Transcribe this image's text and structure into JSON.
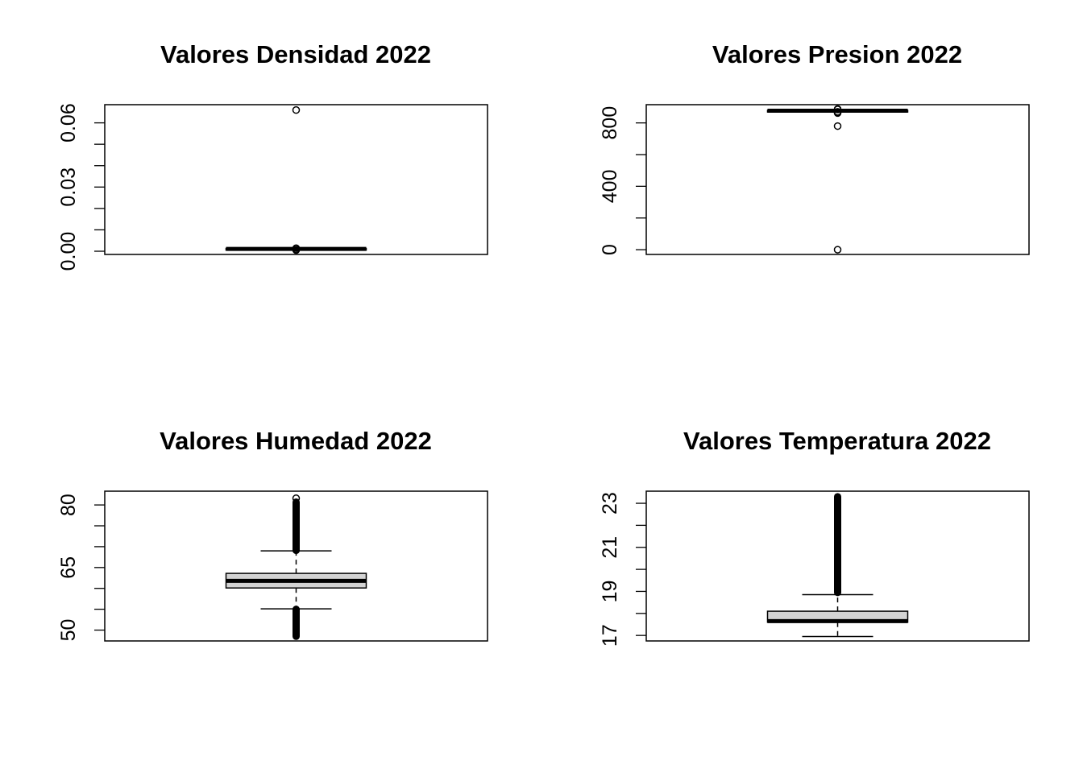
{
  "chart_data": [
    {
      "type": "boxplot",
      "title": "Valores Densidad 2022",
      "yticks": [
        0.0,
        0.03,
        0.06
      ],
      "ytick_labels": [
        "0.00",
        "0.03",
        "0.06"
      ],
      "minor_ticks": [
        0.0,
        0.01,
        0.02,
        0.03,
        0.04,
        0.05,
        0.06
      ],
      "ylim": [
        -0.0015,
        0.0685
      ],
      "box": {
        "q1": 0.0009,
        "median": 0.0011,
        "q3": 0.0013,
        "whisker_low": 0.0009,
        "whisker_high": 0.0013
      },
      "outliers": [
        0.066,
        0.0014,
        0.0008,
        0.0005
      ],
      "outlier_band": null
    },
    {
      "type": "boxplot",
      "title": "Valores Presion 2022",
      "yticks": [
        0,
        400,
        800
      ],
      "ytick_labels": [
        "0",
        "400",
        "800"
      ],
      "minor_ticks": [
        0,
        200,
        400,
        600,
        800
      ],
      "ylim": [
        -30,
        915
      ],
      "box": {
        "q1": 875,
        "median": 877,
        "q3": 879,
        "whisker_low": 875,
        "whisker_high": 879
      },
      "outliers": [
        0,
        780,
        862,
        866,
        870,
        885,
        888
      ],
      "outlier_band": null
    },
    {
      "type": "boxplot",
      "title": "Valores Humedad 2022",
      "yticks": [
        50,
        65,
        80
      ],
      "ytick_labels": [
        "50",
        "65",
        "80"
      ],
      "minor_ticks": [
        50,
        55,
        60,
        65,
        70,
        75,
        80
      ],
      "ylim": [
        47.4,
        83.3
      ],
      "box": {
        "q1": 60.1,
        "median": 61.8,
        "q3": 63.6,
        "whisker_low": 55.1,
        "whisker_high": 69.0
      },
      "outliers": [
        81.6
      ],
      "outlier_band": {
        "high": [
          69.1,
          80.7
        ],
        "low": [
          48.5,
          55.0
        ]
      }
    },
    {
      "type": "boxplot",
      "title": "Valores Temperatura 2022",
      "yticks": [
        17,
        19,
        21,
        23
      ],
      "ytick_labels": [
        "17",
        "19",
        "21",
        "23"
      ],
      "minor_ticks": [
        17,
        18,
        19,
        20,
        21,
        22,
        23
      ],
      "ylim": [
        16.75,
        23.55
      ],
      "box": {
        "q1": 17.6,
        "median": 17.65,
        "q3": 18.1,
        "whisker_low": 16.95,
        "whisker_high": 18.85
      },
      "outliers": [],
      "outlier_band": {
        "high": [
          18.95,
          23.3
        ],
        "low": null
      }
    }
  ]
}
